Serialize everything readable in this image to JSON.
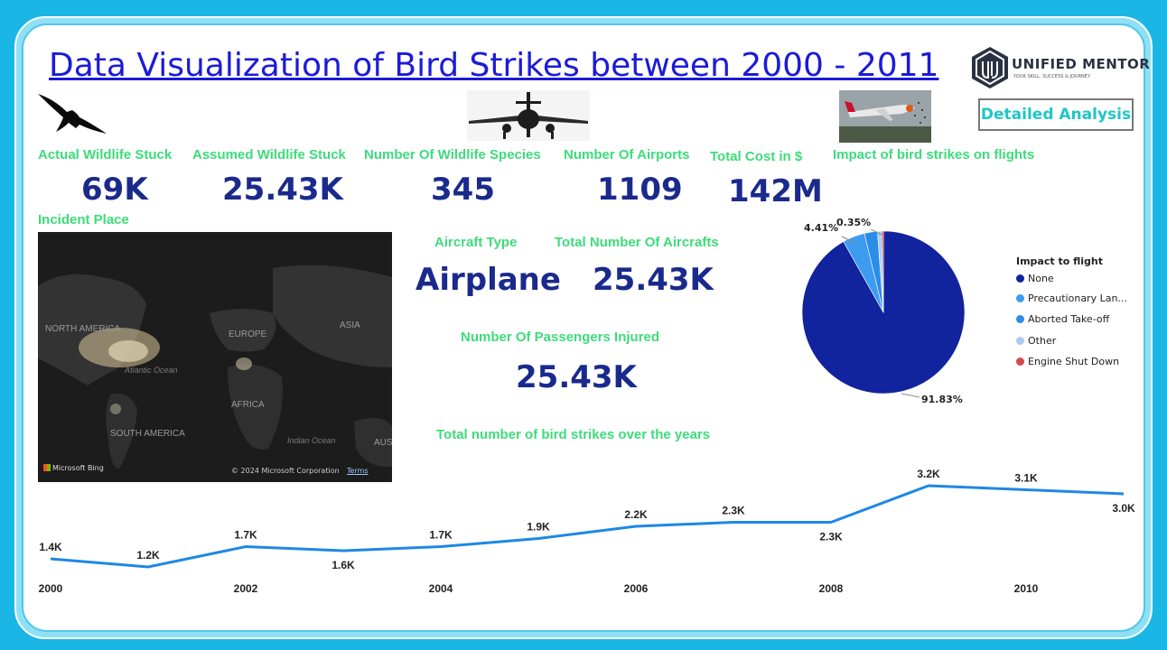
{
  "title": "Data Visualization of Bird Strikes between 2000 - 2011",
  "logo": {
    "name": "UNIFIED MENTOR",
    "tagline": "YOUR SKILL, SUCCESS & JOURNEY"
  },
  "detail_button": "Detailed Analysis",
  "kpis": [
    {
      "label": "Actual Wildlife Stuck",
      "value": "69K"
    },
    {
      "label": "Assumed Wildlife Stuck",
      "value": "25.43K"
    },
    {
      "label": "Number Of Wildlife Species",
      "value": "345"
    },
    {
      "label": "Number Of Airports",
      "value": "1109"
    },
    {
      "label": "Total Cost in $",
      "value": "142M"
    }
  ],
  "impact_title": "Impact of bird strikes on flights",
  "incident_place": {
    "label": "Incident Place",
    "regions": [
      "NORTH AMERICA",
      "EUROPE",
      "ASIA",
      "AFRICA",
      "SOUTH AMERICA",
      "AUS"
    ],
    "oceans": [
      "Atlantic Ocean",
      "Indian Ocean"
    ],
    "provider": "Microsoft Bing",
    "copyright": "© 2024 Microsoft Corporation",
    "terms": "Terms"
  },
  "aircraft": {
    "type_label": "Aircraft Type",
    "type_value": "Airplane",
    "total_label": "Total Number Of Aircrafts",
    "total_value": "25.43K"
  },
  "passengers": {
    "label": "Number Of Passengers Injured",
    "value": "25.43K"
  },
  "line_title": "Total number of bird strikes over the years",
  "chart_data": [
    {
      "type": "pie",
      "legend_title": "Impact to flight",
      "legend_position": "right",
      "slices": [
        {
          "name": "None",
          "value": 91.83,
          "label": "91.83%",
          "color": "#12239e"
        },
        {
          "name": "Precautionary Lan...",
          "value": 4.41,
          "label": "4.41%",
          "color": "#3e9cf0"
        },
        {
          "name": "Aborted Take-off",
          "value": 2.6,
          "label": "",
          "color": "#2a8de8"
        },
        {
          "name": "Other",
          "value": 0.81,
          "label": "",
          "color": "#a9cdf3"
        },
        {
          "name": "Engine Shut Down",
          "value": 0.35,
          "label": "0.35%",
          "color": "#d64550"
        }
      ]
    },
    {
      "type": "line",
      "title": "Total number of bird strikes over the years",
      "x": [
        2000,
        2001,
        2002,
        2003,
        2004,
        2005,
        2006,
        2007,
        2008,
        2009,
        2010,
        2011
      ],
      "xticks": [
        "2000",
        "2002",
        "2004",
        "2006",
        "2008",
        "2010"
      ],
      "series": [
        {
          "values": [
            1.4,
            1.2,
            1.7,
            1.6,
            1.7,
            1.9,
            2.2,
            2.3,
            2.3,
            3.2,
            3.1,
            3.0
          ],
          "labels": [
            "1.4K",
            "1.2K",
            "1.7K",
            "1.6K",
            "1.7K",
            "1.9K",
            "2.2K",
            "2.3K",
            "2.3K",
            "3.2K",
            "3.1K",
            "3.0K"
          ],
          "color": "#1e88e5"
        }
      ],
      "grid": false
    }
  ]
}
